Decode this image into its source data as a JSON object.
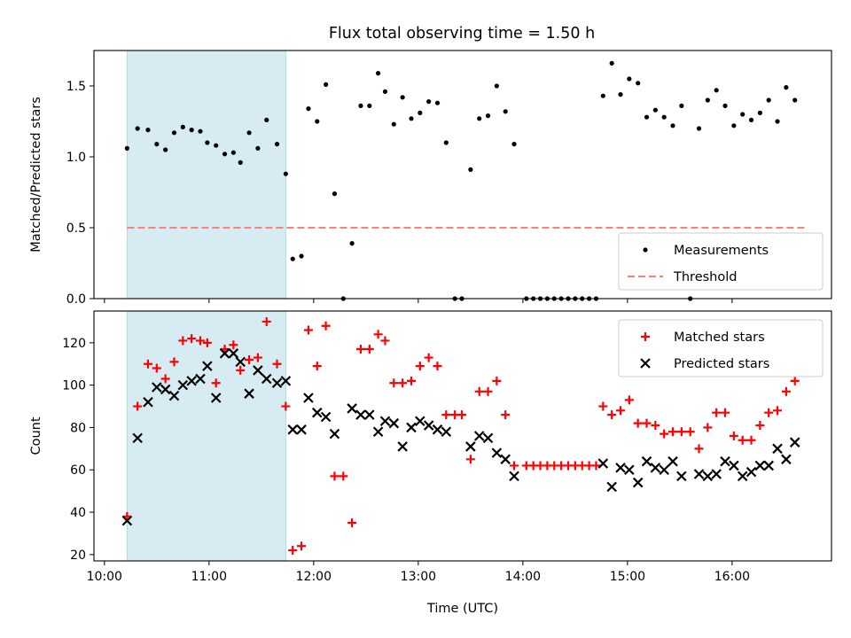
{
  "figure": {
    "title": "Flux total observing time = 1.50 h"
  },
  "colors": {
    "measurement": "#000000",
    "threshold": "#ff7f7f",
    "window": "#add8e6",
    "matched": "#ff0000",
    "predicted": "#000000"
  },
  "chart_data": [
    {
      "type": "scatter",
      "name": "ratio-panel",
      "ylabel": "Matched/Predicted stars",
      "xlabel": "",
      "xlim": [
        "10:00",
        "17:00"
      ],
      "ylim": [
        0,
        1.75
      ],
      "yticks": [
        0.0,
        0.5,
        1.0,
        1.5
      ],
      "ytick_labels": [
        "0.0",
        "0.5",
        "1.0",
        "1.5"
      ],
      "shaded_window": [
        "10:13",
        "11:44"
      ],
      "legend": {
        "placement": "lower-right",
        "entries": [
          "Measurements",
          "Threshold"
        ]
      },
      "threshold": {
        "label": "Threshold",
        "value": 0.5,
        "x": [
          "10:13",
          "16:42"
        ],
        "style": "dashed"
      },
      "series": [
        {
          "name": "Measurements",
          "marker": "dot",
          "points": [
            [
              "10:13",
              1.06
            ],
            [
              "10:19",
              1.2
            ],
            [
              "10:25",
              1.19
            ],
            [
              "10:30",
              1.09
            ],
            [
              "10:35",
              1.05
            ],
            [
              "10:40",
              1.17
            ],
            [
              "10:45",
              1.21
            ],
            [
              "10:50",
              1.19
            ],
            [
              "10:55",
              1.18
            ],
            [
              "10:59",
              1.1
            ],
            [
              "11:04",
              1.08
            ],
            [
              "11:09",
              1.02
            ],
            [
              "11:14",
              1.03
            ],
            [
              "11:18",
              0.96
            ],
            [
              "11:23",
              1.17
            ],
            [
              "11:28",
              1.06
            ],
            [
              "11:33",
              1.26
            ],
            [
              "11:39",
              1.09
            ],
            [
              "11:44",
              0.88
            ],
            [
              "11:48",
              0.28
            ],
            [
              "11:53",
              0.3
            ],
            [
              "11:57",
              1.34
            ],
            [
              "12:02",
              1.25
            ],
            [
              "12:07",
              1.51
            ],
            [
              "12:12",
              0.74
            ],
            [
              "12:17",
              0.0
            ],
            [
              "12:22",
              0.39
            ],
            [
              "12:27",
              1.36
            ],
            [
              "12:32",
              1.36
            ],
            [
              "12:37",
              1.59
            ],
            [
              "12:41",
              1.46
            ],
            [
              "12:46",
              1.23
            ],
            [
              "12:51",
              1.42
            ],
            [
              "12:56",
              1.27
            ],
            [
              "13:01",
              1.31
            ],
            [
              "13:06",
              1.39
            ],
            [
              "13:11",
              1.38
            ],
            [
              "13:16",
              1.1
            ],
            [
              "13:21",
              0.0
            ],
            [
              "13:25",
              0.0
            ],
            [
              "13:30",
              0.91
            ],
            [
              "13:35",
              1.27
            ],
            [
              "13:40",
              1.29
            ],
            [
              "13:45",
              1.5
            ],
            [
              "13:50",
              1.32
            ],
            [
              "13:55",
              1.09
            ],
            [
              "14:02",
              0.0
            ],
            [
              "14:06",
              0.0
            ],
            [
              "14:10",
              0.0
            ],
            [
              "14:14",
              0.0
            ],
            [
              "14:18",
              0.0
            ],
            [
              "14:22",
              0.0
            ],
            [
              "14:26",
              0.0
            ],
            [
              "14:30",
              0.0
            ],
            [
              "14:34",
              0.0
            ],
            [
              "14:38",
              0.0
            ],
            [
              "14:42",
              0.0
            ],
            [
              "14:46",
              1.43
            ],
            [
              "14:51",
              1.66
            ],
            [
              "14:56",
              1.44
            ],
            [
              "15:01",
              1.55
            ],
            [
              "15:06",
              1.52
            ],
            [
              "15:11",
              1.28
            ],
            [
              "15:16",
              1.33
            ],
            [
              "15:21",
              1.28
            ],
            [
              "15:26",
              1.22
            ],
            [
              "15:31",
              1.36
            ],
            [
              "15:36",
              0.0
            ],
            [
              "15:41",
              1.2
            ],
            [
              "15:46",
              1.4
            ],
            [
              "15:51",
              1.47
            ],
            [
              "15:56",
              1.36
            ],
            [
              "16:01",
              1.22
            ],
            [
              "16:06",
              1.3
            ],
            [
              "16:11",
              1.26
            ],
            [
              "16:16",
              1.31
            ],
            [
              "16:21",
              1.4
            ],
            [
              "16:26",
              1.25
            ],
            [
              "16:31",
              1.49
            ],
            [
              "16:36",
              1.4
            ]
          ]
        }
      ]
    },
    {
      "type": "scatter",
      "name": "count-panel",
      "ylabel": "Count",
      "xlabel": "Time (UTC)",
      "xlim": [
        "10:00",
        "17:00"
      ],
      "ylim": [
        17,
        135
      ],
      "yticks": [
        20,
        40,
        60,
        80,
        100,
        120
      ],
      "ytick_labels": [
        "20",
        "40",
        "60",
        "80",
        "100",
        "120"
      ],
      "xticks": [
        "10:00",
        "11:00",
        "12:00",
        "13:00",
        "14:00",
        "15:00",
        "16:00"
      ],
      "xtick_labels": [
        "10:00",
        "11:00",
        "12:00",
        "13:00",
        "14:00",
        "15:00",
        "16:00"
      ],
      "shaded_window": [
        "10:13",
        "11:44"
      ],
      "legend": {
        "placement": "top-right",
        "entries": [
          "Matched stars",
          "Predicted stars"
        ]
      },
      "series": [
        {
          "name": "Matched stars",
          "marker": "plus",
          "points": [
            [
              "10:13",
              38
            ],
            [
              "10:19",
              90
            ],
            [
              "10:25",
              110
            ],
            [
              "10:30",
              108
            ],
            [
              "10:35",
              103
            ],
            [
              "10:40",
              111
            ],
            [
              "10:45",
              121
            ],
            [
              "10:50",
              122
            ],
            [
              "10:55",
              121
            ],
            [
              "10:59",
              120
            ],
            [
              "11:04",
              101
            ],
            [
              "11:09",
              117
            ],
            [
              "11:14",
              119
            ],
            [
              "11:18",
              107
            ],
            [
              "11:23",
              112
            ],
            [
              "11:28",
              113
            ],
            [
              "11:33",
              130
            ],
            [
              "11:39",
              110
            ],
            [
              "11:44",
              90
            ],
            [
              "11:48",
              22
            ],
            [
              "11:53",
              24
            ],
            [
              "11:57",
              126
            ],
            [
              "12:02",
              109
            ],
            [
              "12:07",
              128
            ],
            [
              "12:12",
              57
            ],
            [
              "12:17",
              57
            ],
            [
              "12:22",
              35
            ],
            [
              "12:27",
              117
            ],
            [
              "12:32",
              117
            ],
            [
              "12:37",
              124
            ],
            [
              "12:41",
              121
            ],
            [
              "12:46",
              101
            ],
            [
              "12:51",
              101
            ],
            [
              "12:56",
              102
            ],
            [
              "13:01",
              109
            ],
            [
              "13:06",
              113
            ],
            [
              "13:11",
              109
            ],
            [
              "13:16",
              86
            ],
            [
              "13:21",
              86
            ],
            [
              "13:25",
              86
            ],
            [
              "13:30",
              65
            ],
            [
              "13:35",
              97
            ],
            [
              "13:40",
              97
            ],
            [
              "13:45",
              102
            ],
            [
              "13:50",
              86
            ],
            [
              "13:55",
              62
            ],
            [
              "14:02",
              62
            ],
            [
              "14:06",
              62
            ],
            [
              "14:10",
              62
            ],
            [
              "14:14",
              62
            ],
            [
              "14:18",
              62
            ],
            [
              "14:22",
              62
            ],
            [
              "14:26",
              62
            ],
            [
              "14:30",
              62
            ],
            [
              "14:34",
              62
            ],
            [
              "14:38",
              62
            ],
            [
              "14:42",
              62
            ],
            [
              "14:46",
              90
            ],
            [
              "14:51",
              86
            ],
            [
              "14:56",
              88
            ],
            [
              "15:01",
              93
            ],
            [
              "15:06",
              82
            ],
            [
              "15:11",
              82
            ],
            [
              "15:16",
              81
            ],
            [
              "15:21",
              77
            ],
            [
              "15:26",
              78
            ],
            [
              "15:31",
              78
            ],
            [
              "15:36",
              78
            ],
            [
              "15:41",
              70
            ],
            [
              "15:46",
              80
            ],
            [
              "15:51",
              87
            ],
            [
              "15:56",
              87
            ],
            [
              "16:01",
              76
            ],
            [
              "16:06",
              74
            ],
            [
              "16:11",
              74
            ],
            [
              "16:16",
              81
            ],
            [
              "16:21",
              87
            ],
            [
              "16:26",
              88
            ],
            [
              "16:31",
              97
            ],
            [
              "16:36",
              102
            ]
          ]
        },
        {
          "name": "Predicted stars",
          "marker": "x",
          "points": [
            [
              "10:13",
              36
            ],
            [
              "10:19",
              75
            ],
            [
              "10:25",
              92
            ],
            [
              "10:30",
              99
            ],
            [
              "10:35",
              98
            ],
            [
              "10:40",
              95
            ],
            [
              "10:45",
              100
            ],
            [
              "10:50",
              102
            ],
            [
              "10:55",
              103
            ],
            [
              "10:59",
              109
            ],
            [
              "11:04",
              94
            ],
            [
              "11:09",
              115
            ],
            [
              "11:14",
              115
            ],
            [
              "11:18",
              111
            ],
            [
              "11:23",
              96
            ],
            [
              "11:28",
              107
            ],
            [
              "11:33",
              103
            ],
            [
              "11:39",
              101
            ],
            [
              "11:44",
              102
            ],
            [
              "11:48",
              79
            ],
            [
              "11:53",
              79
            ],
            [
              "11:57",
              94
            ],
            [
              "12:02",
              87
            ],
            [
              "12:07",
              85
            ],
            [
              "12:12",
              77
            ],
            [
              "12:22",
              89
            ],
            [
              "12:27",
              86
            ],
            [
              "12:32",
              86
            ],
            [
              "12:37",
              78
            ],
            [
              "12:41",
              83
            ],
            [
              "12:46",
              82
            ],
            [
              "12:51",
              71
            ],
            [
              "12:56",
              80
            ],
            [
              "13:01",
              83
            ],
            [
              "13:06",
              81
            ],
            [
              "13:11",
              79
            ],
            [
              "13:16",
              78
            ],
            [
              "13:30",
              71
            ],
            [
              "13:35",
              76
            ],
            [
              "13:40",
              75
            ],
            [
              "13:45",
              68
            ],
            [
              "13:50",
              65
            ],
            [
              "13:55",
              57
            ],
            [
              "14:46",
              63
            ],
            [
              "14:51",
              52
            ],
            [
              "14:56",
              61
            ],
            [
              "15:01",
              60
            ],
            [
              "15:06",
              54
            ],
            [
              "15:11",
              64
            ],
            [
              "15:16",
              61
            ],
            [
              "15:21",
              60
            ],
            [
              "15:26",
              64
            ],
            [
              "15:31",
              57
            ],
            [
              "15:41",
              58
            ],
            [
              "15:46",
              57
            ],
            [
              "15:51",
              58
            ],
            [
              "15:56",
              64
            ],
            [
              "16:01",
              62
            ],
            [
              "16:06",
              57
            ],
            [
              "16:11",
              59
            ],
            [
              "16:16",
              62
            ],
            [
              "16:21",
              62
            ],
            [
              "16:26",
              70
            ],
            [
              "16:31",
              65
            ],
            [
              "16:36",
              73
            ]
          ]
        }
      ]
    }
  ]
}
